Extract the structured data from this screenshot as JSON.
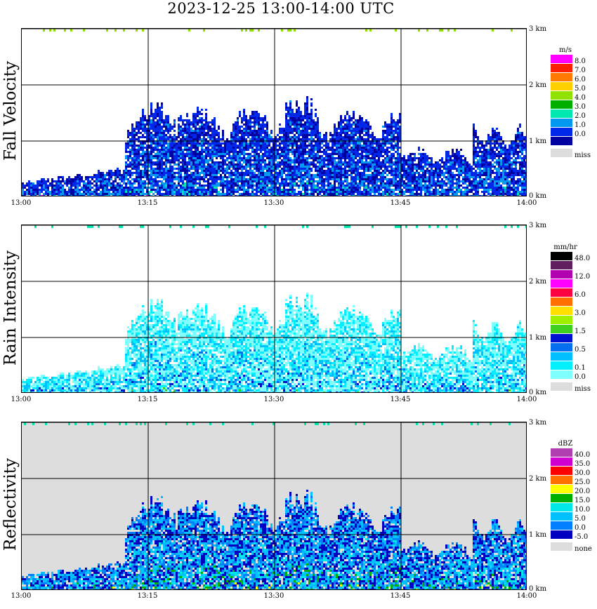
{
  "title": "2023-12-25   13:00-14:00 UTC",
  "chart_data": [
    {
      "type": "heatmap",
      "name": "fall-velocity",
      "ylabel": "Fall Velocity",
      "unit": "m/s",
      "x_ticks": [
        "13:00",
        "13:15",
        "13:30",
        "13:45",
        "14:00"
      ],
      "y_ticks": [
        "0 km",
        "1 km",
        "2 km",
        "3 km"
      ],
      "ylim_km": [
        0,
        3.0
      ],
      "xlim_min": [
        0,
        60
      ],
      "background": "#ffffff",
      "legend": [
        {
          "label": "8.0",
          "color": "#ff00ff"
        },
        {
          "label": "7.0",
          "color": "#ff2000"
        },
        {
          "label": "6.0",
          "color": "#ff7a00"
        },
        {
          "label": "5.0",
          "color": "#ffd000"
        },
        {
          "label": "4.0",
          "color": "#90e000"
        },
        {
          "label": "3.0",
          "color": "#00b000"
        },
        {
          "label": "2.0",
          "color": "#00e8b0"
        },
        {
          "label": "1.0",
          "color": "#0098f0"
        },
        {
          "label": "0.0",
          "color": "#0028e8"
        },
        {
          "label": "",
          "color": "#0000a0"
        },
        {
          "label": "miss",
          "color": "#dddddd",
          "gap": true
        }
      ],
      "palette": [
        "#0000a0",
        "#0028e8",
        "#0098f0",
        "#00e8b0",
        "#ff00ff"
      ],
      "weights": [
        0.22,
        0.38,
        0.32,
        0.06,
        0.02
      ]
    },
    {
      "type": "heatmap",
      "name": "rain-intensity",
      "ylabel": "Rain Intensity",
      "unit": "mm/hr",
      "x_ticks": [
        "13:00",
        "13:15",
        "13:30",
        "13:45",
        "14:00"
      ],
      "y_ticks": [
        "0 km",
        "1 km",
        "2 km",
        "3 km"
      ],
      "ylim_km": [
        0,
        3.0
      ],
      "xlim_min": [
        0,
        60
      ],
      "background": "#ffffff",
      "legend": [
        {
          "label": "48.0",
          "color": "#000000"
        },
        {
          "label": "",
          "color": "#602060"
        },
        {
          "label": "12.0",
          "color": "#b000b0"
        },
        {
          "label": "",
          "color": "#ff00ff"
        },
        {
          "label": "6.0",
          "color": "#ff0040"
        },
        {
          "label": "",
          "color": "#ff7000"
        },
        {
          "label": "3.0",
          "color": "#ffe000"
        },
        {
          "label": "",
          "color": "#a0f000"
        },
        {
          "label": "1.5",
          "color": "#40d020"
        },
        {
          "label": "",
          "color": "#0010d0"
        },
        {
          "label": "0.5",
          "color": "#0070f0"
        },
        {
          "label": "",
          "color": "#00c0ff"
        },
        {
          "label": "0.1",
          "color": "#00f0ff"
        },
        {
          "label": "0.0",
          "color": "#80ffff"
        },
        {
          "label": "miss",
          "color": "#dddddd",
          "gap": true
        }
      ],
      "palette": [
        "#80ffff",
        "#00f0ff",
        "#00c0ff",
        "#0070f0",
        "#0010d0",
        "#40d020"
      ],
      "weights": [
        0.38,
        0.22,
        0.16,
        0.12,
        0.09,
        0.03
      ]
    },
    {
      "type": "heatmap",
      "name": "reflectivity",
      "ylabel": "Reflectivity",
      "unit": "dBZ",
      "x_ticks": [
        "13:00",
        "13:15",
        "13:30",
        "13:45",
        "14:00"
      ],
      "y_ticks": [
        "0 km",
        "1 km",
        "2 km",
        "3 km"
      ],
      "ylim_km": [
        0,
        3.0
      ],
      "xlim_min": [
        0,
        60
      ],
      "background": "#dddddd",
      "legend": [
        {
          "label": "40.0",
          "color": "#b040b0"
        },
        {
          "label": "35.0",
          "color": "#d000d0"
        },
        {
          "label": "30.0",
          "color": "#ff0000"
        },
        {
          "label": "25.0",
          "color": "#ff7000"
        },
        {
          "label": "20.0",
          "color": "#ffff00"
        },
        {
          "label": "15.0",
          "color": "#00b000"
        },
        {
          "label": "10.0",
          "color": "#00e8e8"
        },
        {
          "label": "5.0",
          "color": "#00c0ff"
        },
        {
          "label": "0.0",
          "color": "#0080ff"
        },
        {
          "label": "-5.0",
          "color": "#0000c0"
        },
        {
          "label": "none",
          "color": "#dddddd",
          "gap": true
        }
      ],
      "palette": [
        "#0000c0",
        "#0080ff",
        "#00c0ff",
        "#00e8e8",
        "#00b000",
        "#ffff00"
      ],
      "weights": [
        0.25,
        0.2,
        0.25,
        0.15,
        0.1,
        0.05
      ]
    }
  ]
}
